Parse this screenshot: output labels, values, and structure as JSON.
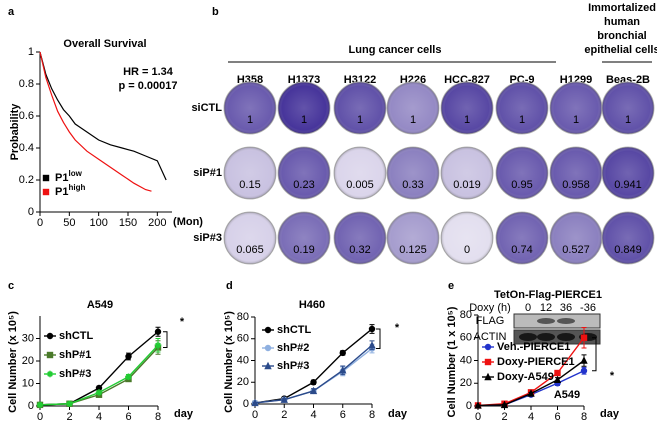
{
  "panel_labels": [
    "a",
    "b",
    "c",
    "d",
    "e"
  ],
  "panel_b": {
    "title": "Lung cancer cells",
    "subtitle_lines": [
      "Immortalized",
      "human",
      "bronchial",
      "epithelial cells"
    ],
    "columns": [
      "H358",
      "H1373",
      "H3122",
      "H226",
      "HCC-827",
      "PC-9",
      "H1299",
      "Beas-2B"
    ],
    "rows": [
      {
        "label": "siCTL",
        "values": [
          1,
          1,
          1,
          1,
          1,
          1,
          1,
          1
        ]
      },
      {
        "label": "siP#1",
        "values": [
          0.15,
          0.23,
          0.005,
          0.33,
          0.019,
          0.95,
          0.958,
          0.941
        ]
      },
      {
        "label": "siP#3",
        "values": [
          0.065,
          0.19,
          0.32,
          0.125,
          0,
          0.74,
          0.527,
          0.849
        ]
      }
    ]
  },
  "inset_e": {
    "title": "TetOn-Flag-PIERCE1",
    "doxy_label": "Doxy (h)",
    "doxy_times": [
      "0",
      "12",
      "36",
      "-36"
    ],
    "bands": [
      "FLAG",
      "ACTIN"
    ]
  },
  "chart_data": [
    {
      "type": "line",
      "title": "Overall Survival",
      "y_label": "Probability",
      "x_label": "(Mon)",
      "annotations": [
        "HR = 1.34",
        "p = 0.00017"
      ],
      "xlim": [
        0,
        225
      ],
      "ylim": [
        0,
        1
      ],
      "xticks": [
        0,
        50,
        100,
        150,
        200
      ],
      "yticks": [
        0,
        0.2,
        0.4,
        0.6,
        0.8,
        1
      ],
      "series": [
        {
          "name": "P1",
          "superscript": "low",
          "color": "#000000",
          "marker": "square",
          "x": [
            0,
            5,
            10,
            20,
            30,
            40,
            50,
            60,
            80,
            100,
            120,
            140,
            160,
            180,
            200,
            215
          ],
          "values": [
            1,
            0.93,
            0.86,
            0.77,
            0.7,
            0.64,
            0.6,
            0.55,
            0.5,
            0.45,
            0.42,
            0.4,
            0.38,
            0.35,
            0.32,
            0.2
          ]
        },
        {
          "name": "P1",
          "superscript": "high",
          "color": "#ee1111",
          "marker": "square",
          "x": [
            0,
            5,
            10,
            20,
            30,
            40,
            50,
            60,
            80,
            100,
            120,
            140,
            160,
            180,
            190
          ],
          "values": [
            1,
            0.92,
            0.84,
            0.73,
            0.63,
            0.56,
            0.5,
            0.45,
            0.38,
            0.33,
            0.28,
            0.23,
            0.18,
            0.14,
            0.13
          ]
        }
      ]
    },
    {
      "type": "line",
      "title": "A549",
      "y_label": "Cell Number (x 10⁵)",
      "x_label": "day",
      "annotations": [
        "*"
      ],
      "x": [
        0,
        2,
        4,
        6,
        8
      ],
      "xlim": [
        0,
        8
      ],
      "ylim": [
        0,
        40
      ],
      "xticks": [
        0,
        2,
        4,
        6,
        8
      ],
      "yticks": [
        0,
        10,
        20,
        30
      ],
      "series": [
        {
          "name": "shCTL",
          "color": "#000000",
          "marker": "circle",
          "values": [
            0.5,
            1,
            8,
            22,
            33
          ],
          "errors": [
            0.3,
            0.3,
            0.8,
            1.5,
            2
          ]
        },
        {
          "name": "shP#1",
          "color": "#4a7a2a",
          "marker": "square",
          "values": [
            0.5,
            1,
            5,
            12,
            26
          ],
          "errors": [
            0.3,
            0.3,
            0.6,
            1,
            3
          ]
        },
        {
          "name": "shP#3",
          "color": "#22cc33",
          "marker": "star",
          "values": [
            0.5,
            1,
            6,
            13,
            27
          ],
          "errors": [
            0.3,
            0.3,
            0.6,
            1,
            3
          ]
        }
      ]
    },
    {
      "type": "line",
      "title": "H460",
      "y_label": "Cell Number (x 10⁵)",
      "x_label": "day",
      "annotations": [
        "*"
      ],
      "x": [
        0,
        2,
        4,
        6,
        8
      ],
      "xlim": [
        0,
        8
      ],
      "ylim": [
        0,
        80
      ],
      "xticks": [
        0,
        2,
        4,
        6,
        8
      ],
      "yticks": [
        0,
        20,
        40,
        60,
        80
      ],
      "series": [
        {
          "name": "shCTL",
          "color": "#000000",
          "marker": "circle",
          "values": [
            1,
            5,
            20,
            47,
            69
          ],
          "errors": [
            0.5,
            1,
            2,
            2,
            4
          ]
        },
        {
          "name": "shP#2",
          "color": "#8fb0e0",
          "marker": "circle",
          "values": [
            1,
            4,
            12,
            30,
            51
          ],
          "errors": [
            0.5,
            1,
            2,
            4,
            4
          ]
        },
        {
          "name": "shP#3",
          "color": "#2b4a8a",
          "marker": "triangle",
          "values": [
            1,
            4,
            12,
            31,
            54
          ],
          "errors": [
            0.5,
            1,
            2,
            4,
            4
          ]
        }
      ]
    },
    {
      "type": "line",
      "y_label": "Cell Number (1 x 10⁵)",
      "x_label": "day",
      "annotations": [
        "*",
        "A549"
      ],
      "x": [
        0,
        2,
        4,
        6,
        8
      ],
      "xlim": [
        0,
        8
      ],
      "ylim": [
        0,
        80
      ],
      "xticks": [
        0,
        2,
        4,
        6,
        8
      ],
      "yticks": [
        0,
        20,
        40,
        60,
        80
      ],
      "series": [
        {
          "name": "Veh.-PIERCE1",
          "color": "#2233cc",
          "marker": "circle",
          "values": [
            0.5,
            1,
            10,
            20,
            31
          ],
          "errors": [
            0.3,
            0.5,
            1,
            2,
            3
          ]
        },
        {
          "name": "Doxy-PIERCE1",
          "color": "#ee1111",
          "marker": "square",
          "values": [
            0.5,
            2,
            12,
            29,
            60
          ],
          "errors": [
            0.3,
            0.5,
            1,
            2,
            9
          ]
        },
        {
          "name": "Doxy-A549",
          "color": "#000000",
          "marker": "triangle",
          "values": [
            0.5,
            1,
            11,
            23,
            40
          ],
          "errors": [
            0.3,
            0.5,
            1,
            2,
            5
          ]
        }
      ]
    }
  ]
}
